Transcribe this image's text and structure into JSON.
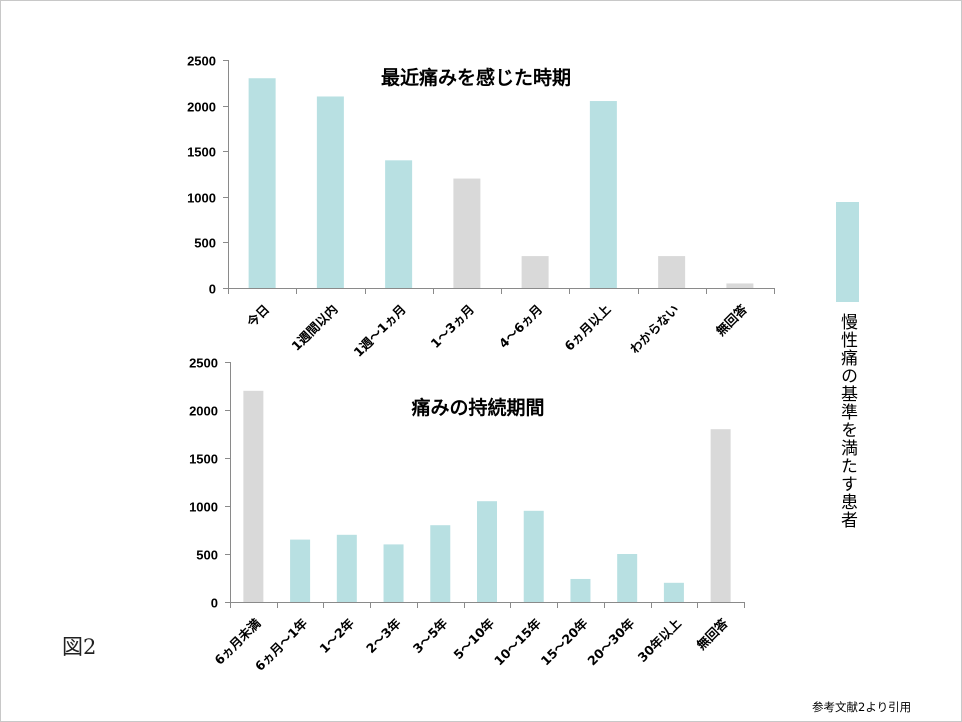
{
  "figure_label": "図2",
  "source_note": "参考文献2より引用",
  "legend": {
    "label": "慢性痛の基準を満たす患者",
    "legend_position": "right"
  },
  "colors": {
    "highlight": "#b8e0e2",
    "other": "#d9d9d9",
    "axis": "#8a8a8a",
    "border": "#c8c8c8"
  },
  "chart_data": [
    {
      "type": "bar",
      "title": "最近痛みを感じた時期",
      "categories": [
        "今日",
        "1週間以内",
        "1週～1ヵ月",
        "1～3ヵ月",
        "4～6ヵ月",
        "6ヵ月以上",
        "わからない",
        "無回答"
      ],
      "values": [
        2300,
        2100,
        1400,
        1200,
        350,
        2050,
        350,
        50
      ],
      "highlight": [
        true,
        true,
        true,
        false,
        false,
        true,
        false,
        false
      ],
      "ylim": [
        0,
        2500
      ],
      "yticks": [
        0,
        500,
        1000,
        1500,
        2000,
        2500
      ],
      "grid": false
    },
    {
      "type": "bar",
      "title": "痛みの持続期間",
      "categories": [
        "6ヵ月未満",
        "6ヵ月～1年",
        "1～2年",
        "2～3年",
        "3～5年",
        "5～10年",
        "10～15年",
        "15～20年",
        "20～30年",
        "30年以上",
        "無回答"
      ],
      "values": [
        2200,
        650,
        700,
        600,
        800,
        1050,
        950,
        240,
        500,
        200,
        1800
      ],
      "highlight": [
        false,
        true,
        true,
        true,
        true,
        true,
        true,
        true,
        true,
        true,
        false
      ],
      "ylim": [
        0,
        2500
      ],
      "yticks": [
        0,
        500,
        1000,
        1500,
        2000,
        2500
      ],
      "grid": false
    }
  ]
}
